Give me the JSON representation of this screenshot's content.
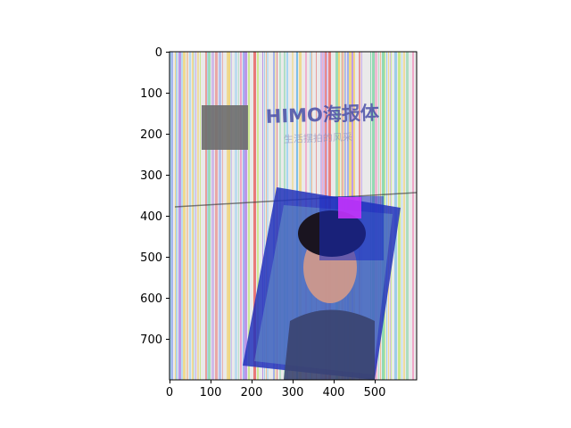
{
  "figure": {
    "x_ticks": [
      "0",
      "100",
      "200",
      "300",
      "400",
      "500"
    ],
    "y_ticks": [
      "0",
      "100",
      "200",
      "300",
      "400",
      "500",
      "600",
      "700"
    ],
    "x_range": [
      0,
      600
    ],
    "y_range": [
      800,
      0
    ],
    "colors": {
      "stripe_palette": [
        "#e86b6b",
        "#6bb8e8",
        "#f2d36a",
        "#7fd6a6",
        "#b58ce8",
        "#f29ac2",
        "#9ad1f2",
        "#c7e87f",
        "#8aa0f0",
        "#f2b07a"
      ],
      "photo_blue": "#2233bb",
      "photo_magenta": "#cc33ff",
      "noise_gray": "#6f6f6f"
    },
    "watermark": {
      "main": "HIMO海报体",
      "sub": "生活摆拍的风采"
    }
  }
}
